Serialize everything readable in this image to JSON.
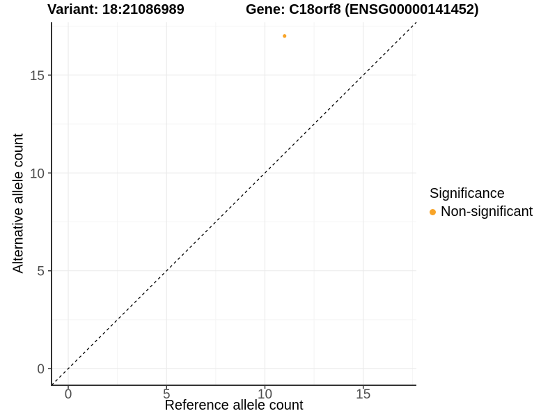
{
  "chart_data": {
    "type": "scatter",
    "titles": [
      "Variant: 18:21086989",
      "Gene: C18orf8 (ENSG00000141452)"
    ],
    "xlabel": "Reference allele count",
    "ylabel": "Alternative allele count",
    "xlim": [
      -0.85,
      17.7
    ],
    "ylim": [
      -0.85,
      17.7
    ],
    "x_ticks": [
      0,
      5,
      10,
      15
    ],
    "y_ticks": [
      0,
      5,
      10,
      15
    ],
    "x_minor_ticks": [
      2.5,
      7.5,
      12.5,
      17.5
    ],
    "y_minor_ticks": [
      2.5,
      7.5,
      12.5,
      17.5
    ],
    "grid": "major+minor",
    "points": [
      {
        "x": 11,
        "y": 17,
        "series": "Non-significant",
        "color": "#F8A428"
      }
    ],
    "reference_line": {
      "kind": "identity",
      "slope": 1,
      "intercept": 0,
      "style": "dashed",
      "color": "#000000"
    },
    "legend": {
      "title": "Significance",
      "position": "right",
      "items": [
        {
          "label": "Non-significant",
          "color": "#F8A428"
        }
      ]
    }
  },
  "colors": {
    "background": "#FFFFFF",
    "point": "#F8A428",
    "axis_line": "#333333",
    "tick_label": "#4D4D4D",
    "grid_major": "#EBEBEB",
    "grid_minor": "#F4F4F4",
    "dashed_line": "#000000"
  }
}
